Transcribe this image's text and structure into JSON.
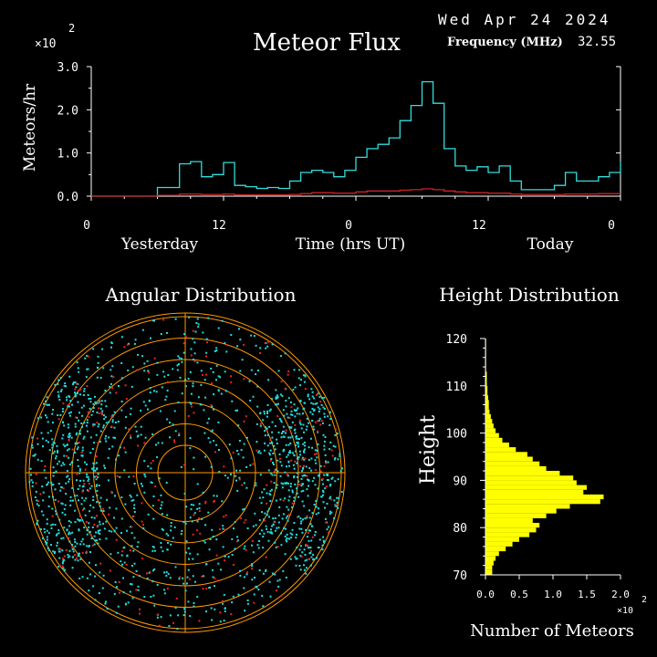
{
  "header": {
    "date": "Wed Apr 24 2024",
    "freq_label": "Frequency (MHz)",
    "freq_value": "32.55",
    "scale_multiplier": "×10",
    "scale_exponent": "2"
  },
  "colors": {
    "background": "#000000",
    "axis": "#ffffff",
    "series_today": "#33dddd",
    "series_baseline": "#cc2222",
    "polar_rings": "#ff9900",
    "dots_cyan": "#22dddd",
    "dots_red": "#ee2222",
    "height_bars": "#ffff00"
  },
  "chart_data": [
    {
      "type": "line",
      "title": "Meteor Flux",
      "ylabel": "Meteors/hr",
      "xlabel": "Time (hrs UT)",
      "y_scale_note": "×10^2",
      "ylim": [
        0,
        3.0
      ],
      "y_ticks": [
        "0.0",
        "1.0",
        "2.0",
        "3.0"
      ],
      "x_ticks": [
        "0",
        "12",
        "0",
        "12",
        "0"
      ],
      "day_labels": [
        "Yesterday",
        "Today"
      ],
      "x_hours": [
        0,
        1,
        2,
        3,
        4,
        5,
        6,
        7,
        8,
        9,
        10,
        11,
        12,
        13,
        14,
        15,
        16,
        17,
        18,
        19,
        20,
        21,
        22,
        23,
        24,
        25,
        26,
        27,
        28,
        29,
        30,
        31,
        32,
        33,
        34,
        35,
        36,
        37,
        38,
        39,
        40,
        41,
        42,
        43,
        44,
        45,
        46,
        47,
        48
      ],
      "series": [
        {
          "values": [
            0,
            0,
            0,
            0,
            0,
            0,
            0.2,
            0.2,
            0.75,
            0.8,
            0.45,
            0.5,
            0.78,
            0.25,
            0.22,
            0.18,
            0.2,
            0.18,
            0.35,
            0.55,
            0.6,
            0.55,
            0.45,
            0.6,
            0.9,
            1.1,
            1.2,
            1.35,
            1.75,
            2.1,
            2.65,
            2.15,
            1.1,
            0.7,
            0.6,
            0.68,
            0.55,
            0.7,
            0.35,
            0.15,
            0.15,
            0.15,
            0.25,
            0.55,
            0.35,
            0.35,
            0.45,
            0.55,
            0.8
          ]
        },
        {
          "values": [
            0,
            0,
            0,
            0,
            0,
            0,
            0.02,
            0.02,
            0.05,
            0.05,
            0.04,
            0.04,
            0.05,
            0.03,
            0.03,
            0.03,
            0.03,
            0.03,
            0.04,
            0.06,
            0.08,
            0.08,
            0.07,
            0.07,
            0.1,
            0.12,
            0.12,
            0.12,
            0.14,
            0.15,
            0.17,
            0.15,
            0.12,
            0.1,
            0.08,
            0.08,
            0.07,
            0.07,
            0.05,
            0.04,
            0.04,
            0.04,
            0.04,
            0.05,
            0.05,
            0.05,
            0.06,
            0.06,
            0.06
          ]
        }
      ]
    },
    {
      "type": "scatter",
      "title": "Angular Distribution",
      "rings": 7,
      "point_seed": 2024
    },
    {
      "type": "bar",
      "title": "Height Distribution",
      "ylabel": "Height",
      "xlabel": "Number of Meteors",
      "x_scale_note": "×10^2",
      "x_ticks": [
        "0.0",
        "0.5",
        "1.0",
        "1.5",
        "2.0"
      ],
      "y_ticks": [
        "70",
        "80",
        "90",
        "100",
        "110",
        "120"
      ],
      "ylim": [
        70,
        120
      ],
      "xlim": [
        0,
        2.0
      ],
      "heights": [
        70,
        71,
        72,
        73,
        74,
        75,
        76,
        77,
        78,
        79,
        80,
        81,
        82,
        83,
        84,
        85,
        86,
        87,
        88,
        89,
        90,
        91,
        92,
        93,
        94,
        95,
        96,
        97,
        98,
        99,
        100,
        101,
        102,
        103,
        104,
        105,
        106,
        107,
        108,
        109,
        110,
        111,
        112,
        113,
        114,
        115,
        116,
        117,
        118,
        119
      ],
      "values": [
        0.1,
        0.1,
        0.12,
        0.15,
        0.2,
        0.3,
        0.4,
        0.5,
        0.65,
        0.75,
        0.8,
        0.7,
        0.9,
        1.05,
        1.25,
        1.7,
        1.75,
        1.45,
        1.5,
        1.35,
        1.3,
        1.1,
        0.9,
        0.8,
        0.7,
        0.62,
        0.45,
        0.35,
        0.25,
        0.2,
        0.15,
        0.12,
        0.1,
        0.08,
        0.06,
        0.05,
        0.05,
        0.04,
        0.03,
        0.03,
        0.02,
        0.02,
        0.02,
        0.01,
        0.01,
        0.01,
        0.01,
        0.01,
        0.01,
        0.01
      ]
    }
  ]
}
